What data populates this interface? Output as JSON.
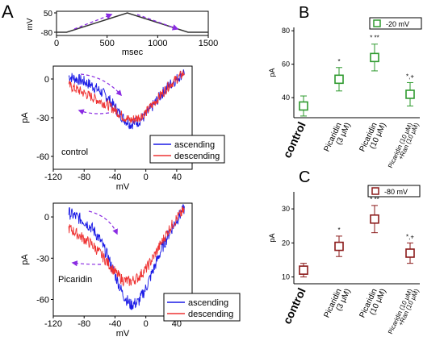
{
  "panels": {
    "A": {
      "label": "A"
    },
    "B": {
      "label": "B"
    },
    "C": {
      "label": "C"
    }
  },
  "colors": {
    "ascending": "#1a1ae6",
    "descending": "#ee3333",
    "panelB": "#2e9a2e",
    "panelC": "#8b1a1a",
    "arrow": "#8a2be2",
    "axis": "#000000"
  },
  "chart_data": [
    {
      "id": "protocol",
      "type": "line",
      "xlabel": "msec",
      "ylabel": "mV",
      "x_ticks": [
        "0",
        "500",
        "1000",
        "1500"
      ],
      "y_ticks": [
        "50",
        "-80"
      ],
      "xlim": [
        0,
        1500
      ],
      "ylim": [
        -80,
        50
      ],
      "x": [
        0,
        100,
        700,
        1300,
        1500
      ],
      "values": [
        -80,
        -80,
        50,
        -80,
        -80
      ]
    },
    {
      "id": "control-iv",
      "type": "line",
      "annotation": "control",
      "xlabel": "mV",
      "ylabel": "pA",
      "x_ticks": [
        "-120",
        "-80",
        "-40",
        "0",
        "40"
      ],
      "y_ticks": [
        "0",
        "-30",
        "-60"
      ],
      "xlim": [
        -120,
        60
      ],
      "ylim": [
        -70,
        10
      ],
      "legend": [
        "ascending",
        "descending"
      ],
      "legend_position": "center-right",
      "series": [
        {
          "name": "ascending",
          "x": [
            -100,
            -90,
            -80,
            -70,
            -60,
            -50,
            -40,
            -30,
            -20,
            -10,
            0,
            10,
            20,
            30,
            40,
            50
          ],
          "values": [
            2,
            0,
            -2,
            -5,
            -9,
            -14,
            -22,
            -30,
            -35,
            -33,
            -28,
            -20,
            -12,
            -5,
            0,
            6
          ]
        },
        {
          "name": "descending",
          "x": [
            -100,
            -90,
            -80,
            -70,
            -60,
            -50,
            -40,
            -30,
            -20,
            -10,
            0,
            10,
            20,
            30,
            40,
            50
          ],
          "values": [
            -5,
            -8,
            -11,
            -14,
            -17,
            -20,
            -24,
            -29,
            -32,
            -30,
            -26,
            -19,
            -12,
            -5,
            0,
            5
          ]
        }
      ]
    },
    {
      "id": "picaridin-iv",
      "type": "line",
      "annotation": "Picaridin",
      "xlabel": "mV",
      "ylabel": "pA",
      "x_ticks": [
        "-120",
        "-80",
        "-40",
        "0",
        "40"
      ],
      "y_ticks": [
        "0",
        "-30",
        "-60"
      ],
      "xlim": [
        -120,
        60
      ],
      "ylim": [
        -72,
        10
      ],
      "legend": [
        "ascending",
        "descending"
      ],
      "legend_position": "bottom-right",
      "series": [
        {
          "name": "ascending",
          "x": [
            -100,
            -90,
            -80,
            -70,
            -60,
            -50,
            -40,
            -30,
            -20,
            -10,
            0,
            10,
            20,
            30,
            40,
            50
          ],
          "values": [
            3,
            0,
            -3,
            -8,
            -16,
            -28,
            -42,
            -56,
            -64,
            -62,
            -52,
            -38,
            -24,
            -12,
            -2,
            6
          ]
        },
        {
          "name": "descending",
          "x": [
            -100,
            -90,
            -80,
            -70,
            -60,
            -50,
            -40,
            -30,
            -20,
            -10,
            0,
            10,
            20,
            30,
            40,
            50
          ],
          "values": [
            -8,
            -12,
            -16,
            -20,
            -26,
            -33,
            -40,
            -46,
            -47,
            -44,
            -38,
            -29,
            -19,
            -9,
            -1,
            5
          ]
        }
      ]
    },
    {
      "id": "panel-b",
      "type": "scatter",
      "legend": [
        "-20 mV"
      ],
      "legend_position": "top-right",
      "ylabel": "pA",
      "y_ticks": [
        "40",
        "60",
        "80"
      ],
      "ylim": [
        28,
        82
      ],
      "categories": [
        "control",
        "Picaridin (3 μM)",
        "Picaridin (10 μM)",
        "Picaridin (10 μM) +Ran (10 μM)"
      ],
      "category_lines": [
        [
          "control"
        ],
        [
          "Picaridin",
          "(3 μM)"
        ],
        [
          "Picaridin",
          "(10 μM)"
        ],
        [
          "Picaridin (10 μM)",
          "+Ran (10 μM)"
        ]
      ],
      "values": [
        35,
        51,
        64,
        42
      ],
      "errors": [
        6,
        7,
        8,
        7
      ],
      "significance": [
        "",
        "*",
        "* **",
        "*,+"
      ]
    },
    {
      "id": "panel-c",
      "type": "scatter",
      "legend": [
        "-80 mV"
      ],
      "legend_position": "top-right",
      "ylabel": "pA",
      "y_ticks": [
        "10",
        "20",
        "30"
      ],
      "ylim": [
        8,
        35
      ],
      "categories": [
        "control",
        "Picaridin (3 μM)",
        "Picaridin (10 μM)",
        "Picaridin (10 μM) +Ran (10 μM)"
      ],
      "category_lines": [
        [
          "control"
        ],
        [
          "Picaridin",
          "(3 μM)"
        ],
        [
          "Picaridin",
          "(10 μM)"
        ],
        [
          "Picaridin (10 μM)",
          "+Ran (10 μM)"
        ]
      ],
      "values": [
        12,
        19,
        27,
        17
      ],
      "errors": [
        2,
        3,
        4,
        3
      ],
      "significance": [
        "",
        "*",
        "* **",
        "*,+"
      ]
    }
  ]
}
